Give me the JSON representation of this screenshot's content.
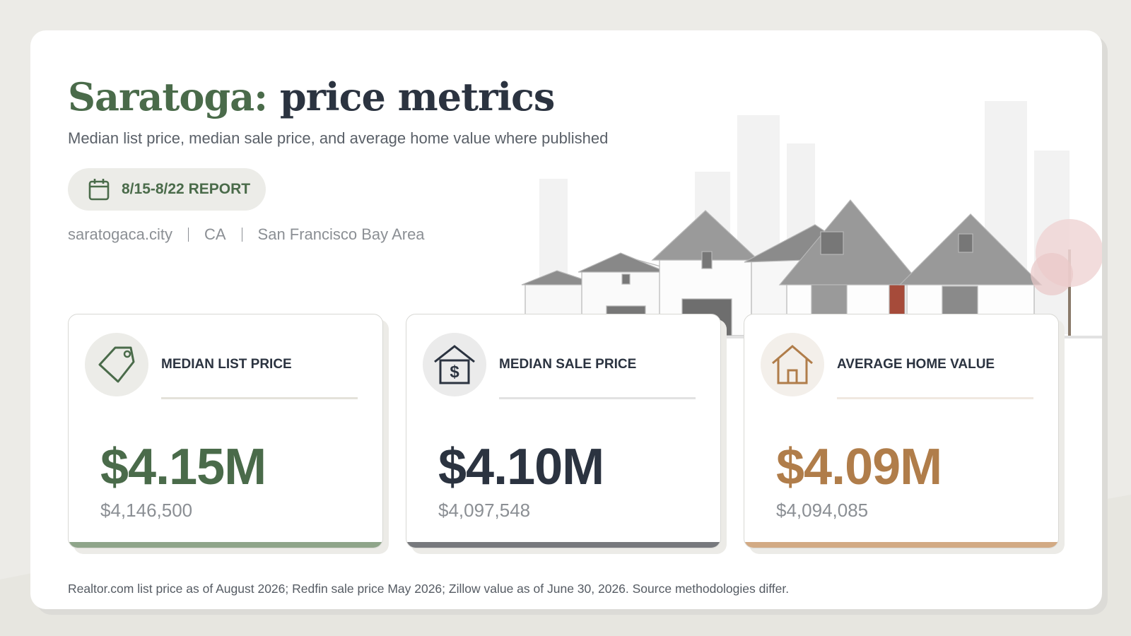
{
  "header": {
    "title_place": "Saratoga:",
    "title_rest": "price metrics",
    "subtitle": "Median list price, median sale price, and average home value where published",
    "report_label": "8/15-8/22 REPORT",
    "meta": [
      "saratogaca.city",
      "CA",
      "San Francisco Bay Area"
    ]
  },
  "metrics": [
    {
      "label": "MEDIAN LIST PRICE",
      "value_short": "$4.15M",
      "value_full": "$4,146,500"
    },
    {
      "label": "MEDIAN SALE PRICE",
      "value_short": "$4.10M",
      "value_full": "$4,097,548"
    },
    {
      "label": "AVERAGE HOME VALUE",
      "value_short": "$4.09M",
      "value_full": "$4,094,085"
    }
  ],
  "footnote": "Realtor.com list price as of August 2026; Redfin sale price May 2026; Zillow value as of June 30, 2026. Source methodologies differ."
}
